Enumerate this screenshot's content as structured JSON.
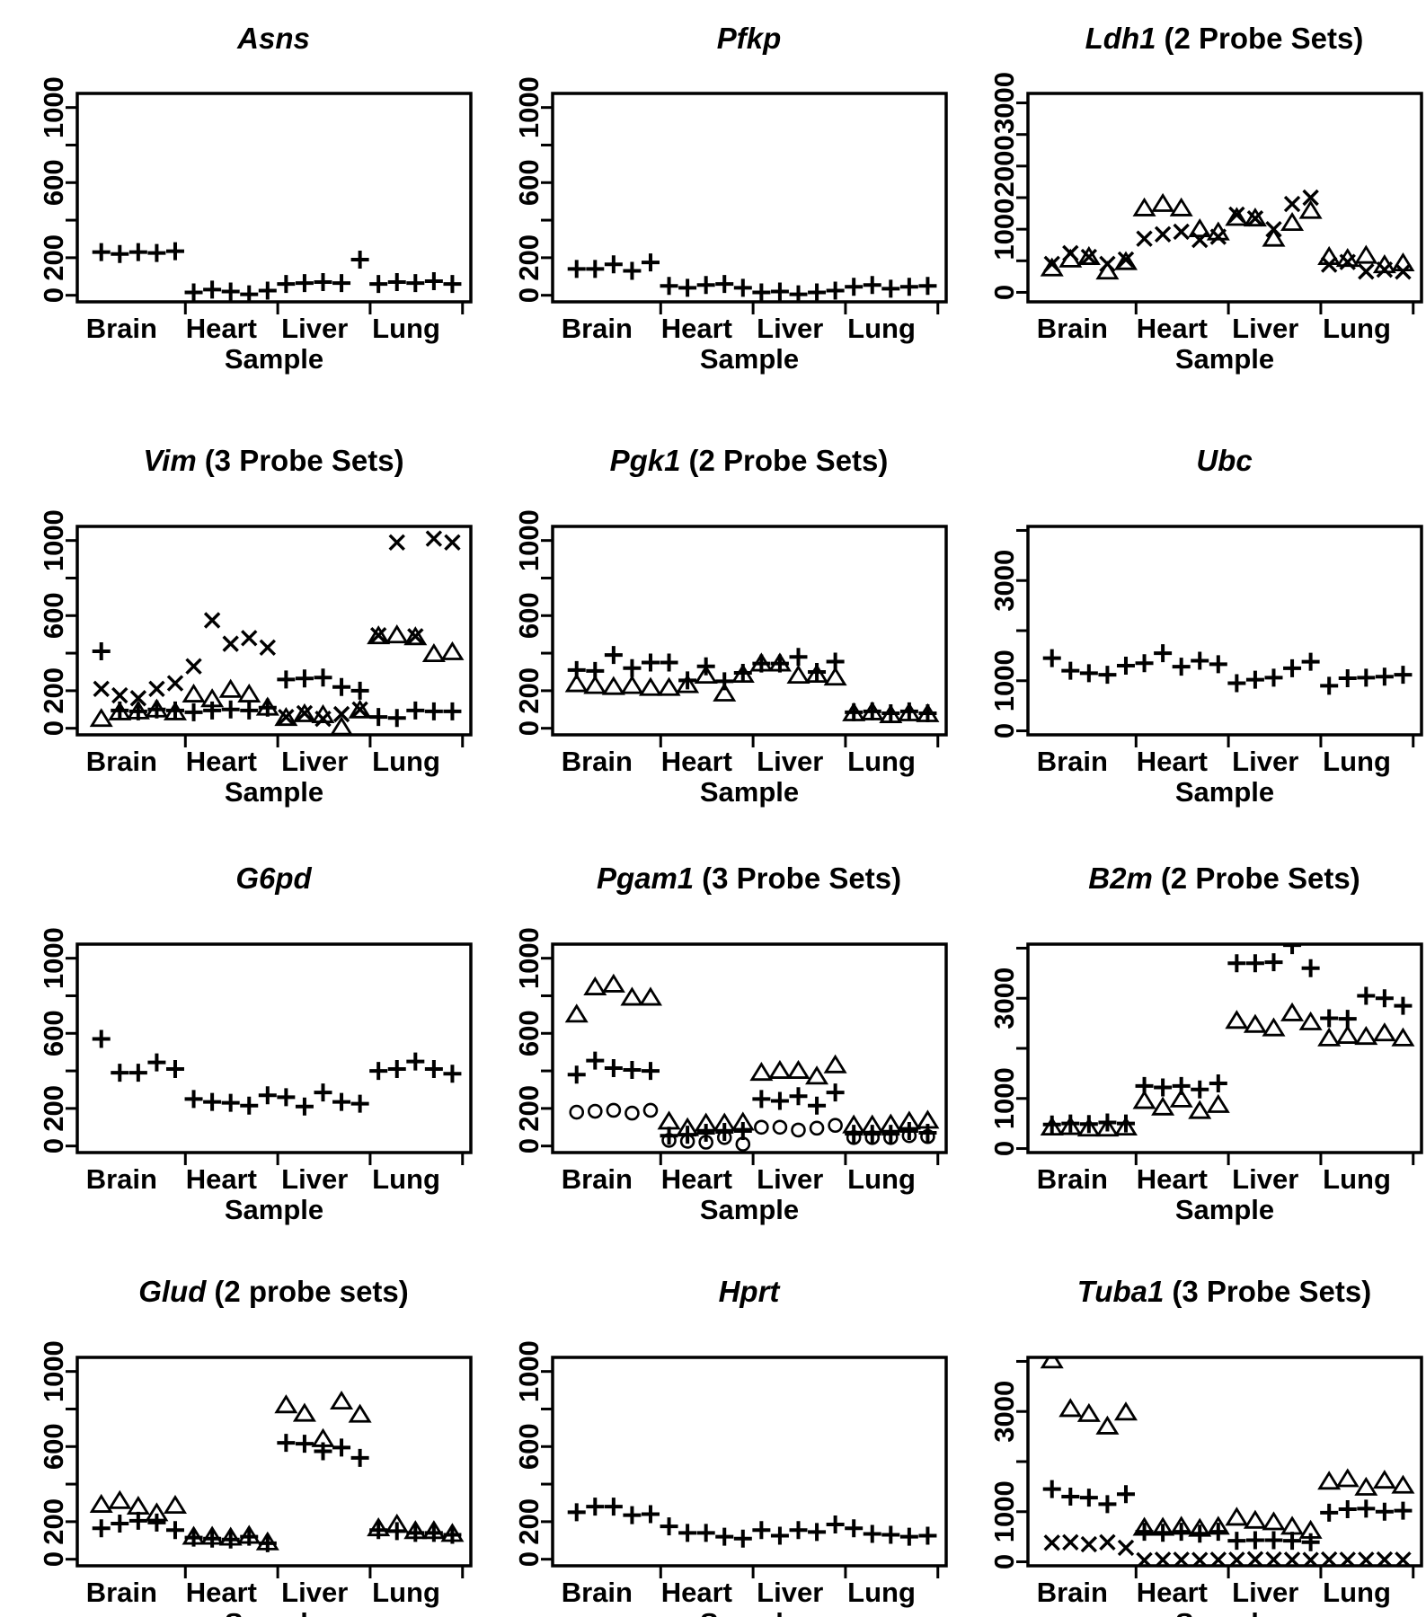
{
  "page": {
    "background": "#ffffff",
    "marker_color": "#000000"
  },
  "chart_data": {
    "type": "scatter",
    "layout": "3x4-grid",
    "xlabel": "Sample",
    "categories": [
      "Brain",
      "Heart",
      "Liver",
      "Lung"
    ],
    "samples_per_tissue": 5,
    "grid": "off",
    "axes": {
      "y1000": {
        "ylim": [
          -35,
          1075
        ],
        "ticks": [
          0,
          200,
          400,
          600,
          800,
          1000
        ],
        "tick_labels": [
          "0",
          "200",
          "",
          "600",
          "",
          "1000"
        ]
      },
      "y3000": {
        "ylim": [
          -150,
          3150
        ],
        "ticks": [
          0,
          500,
          1000,
          1500,
          2000,
          2500,
          3000
        ],
        "tick_labels": [
          "0",
          "",
          "1000",
          "",
          "2000",
          "",
          "3000"
        ]
      },
      "y4000": {
        "ylim": [
          -80,
          4080
        ],
        "ticks": [
          0,
          1000,
          2000,
          3000,
          4000
        ],
        "tick_labels": [
          "0",
          "1000",
          "",
          "3000",
          ""
        ]
      }
    },
    "charts": [
      {
        "gene": "Asns",
        "suffix": "",
        "axis": "y1000",
        "series": [
          {
            "name": "probe-set-1",
            "marker": "plus",
            "values": [
              230,
              220,
              230,
              225,
              235,
              15,
              30,
              20,
              5,
              25,
              60,
              65,
              70,
              65,
              190,
              60,
              70,
              65,
              75,
              60
            ]
          }
        ]
      },
      {
        "gene": "Pfkp",
        "suffix": "",
        "axis": "y1000",
        "series": [
          {
            "name": "probe-set-1",
            "marker": "plus",
            "values": [
              140,
              140,
              165,
              130,
              175,
              50,
              40,
              55,
              60,
              40,
              15,
              20,
              5,
              15,
              25,
              45,
              55,
              35,
              45,
              50
            ]
          }
        ]
      },
      {
        "gene": "Ldh1",
        "suffix": "(2 Probe Sets)",
        "axis": "y3000",
        "series": [
          {
            "name": "probe-set-1",
            "marker": "x",
            "values": [
              450,
              620,
              560,
              450,
              520,
              850,
              920,
              960,
              830,
              880,
              1230,
              1170,
              1000,
              1400,
              1500,
              440,
              480,
              330,
              360,
              330
            ]
          },
          {
            "name": "probe-set-2",
            "marker": "triangle",
            "values": [
              380,
              520,
              560,
              330,
              480,
              1330,
              1400,
              1330,
              1000,
              950,
              1180,
              1170,
              850,
              1100,
              1290,
              560,
              530,
              580,
              430,
              460
            ]
          }
        ]
      },
      {
        "gene": "Vim",
        "suffix": "(3 Probe Sets)",
        "axis": "y1000",
        "series": [
          {
            "name": "probe-set-1",
            "marker": "x",
            "values": [
              210,
              175,
              160,
              210,
              240,
              330,
              575,
              450,
              480,
              430,
              60,
              80,
              50,
              75,
              100,
              495,
              990,
              490,
              1010,
              990
            ]
          },
          {
            "name": "probe-set-2",
            "marker": "triangle",
            "values": [
              50,
              85,
              90,
              100,
              85,
              180,
              155,
              205,
              180,
              110,
              55,
              75,
              70,
              5,
              95,
              490,
              495,
              485,
              395,
              405
            ]
          },
          {
            "name": "probe-set-3",
            "marker": "plus",
            "values": [
              410,
              95,
              90,
              100,
              95,
              85,
              95,
              100,
              95,
              110,
              260,
              265,
              270,
              220,
              200,
              60,
              55,
              95,
              90,
              90
            ]
          }
        ]
      },
      {
        "gene": "Pgk1",
        "suffix": "(2 Probe Sets)",
        "axis": "y1000",
        "series": [
          {
            "name": "probe-set-1",
            "marker": "triangle",
            "values": [
              235,
              225,
              220,
              225,
              215,
              215,
              230,
              280,
              185,
              285,
              345,
              345,
              280,
              285,
              270,
              80,
              85,
              70,
              80,
              75
            ]
          },
          {
            "name": "probe-set-2",
            "marker": "plus",
            "values": [
              310,
              305,
              390,
              320,
              350,
              350,
              255,
              330,
              250,
              295,
              345,
              345,
              380,
              300,
              355,
              85,
              90,
              80,
              90,
              80
            ]
          }
        ]
      },
      {
        "gene": "Ubc",
        "suffix": "",
        "axis": "y4000",
        "series": [
          {
            "name": "probe-set-1",
            "marker": "plus",
            "values": [
              1450,
              1200,
              1150,
              1120,
              1300,
              1350,
              1550,
              1280,
              1400,
              1330,
              950,
              1020,
              1060,
              1250,
              1380,
              900,
              1050,
              1060,
              1080,
              1120
            ]
          }
        ]
      },
      {
        "gene": "G6pd",
        "suffix": "",
        "axis": "y1000",
        "series": [
          {
            "name": "probe-set-1",
            "marker": "plus",
            "values": [
              570,
              390,
              390,
              445,
              410,
              250,
              235,
              230,
              215,
              270,
              260,
              210,
              285,
              235,
              225,
              400,
              410,
              450,
              410,
              385
            ]
          }
        ]
      },
      {
        "gene": "Pgam1",
        "suffix": "(3 Probe Sets)",
        "axis": "y1000",
        "series": [
          {
            "name": "probe-set-1",
            "marker": "triangle",
            "values": [
              700,
              845,
              860,
              790,
              790,
              130,
              95,
              120,
              120,
              125,
              390,
              400,
              400,
              370,
              430,
              110,
              110,
              115,
              130,
              135
            ]
          },
          {
            "name": "probe-set-2",
            "marker": "plus",
            "values": [
              380,
              455,
              415,
              405,
              400,
              55,
              60,
              70,
              75,
              80,
              250,
              240,
              265,
              215,
              285,
              65,
              65,
              65,
              80,
              70
            ]
          },
          {
            "name": "probe-set-3",
            "marker": "circle",
            "values": [
              180,
              185,
              190,
              175,
              190,
              30,
              25,
              20,
              45,
              10,
              100,
              100,
              85,
              95,
              110,
              45,
              45,
              45,
              55,
              50
            ]
          }
        ]
      },
      {
        "gene": "B2m",
        "suffix": "(2 Probe Sets)",
        "axis": "y4000",
        "series": [
          {
            "name": "probe-set-1",
            "marker": "triangle",
            "values": [
              420,
              430,
              400,
              400,
              420,
              950,
              820,
              980,
              750,
              870,
              2550,
              2470,
              2400,
              2700,
              2520,
              2200,
              2250,
              2230,
              2300,
              2200
            ]
          },
          {
            "name": "probe-set-2",
            "marker": "plus",
            "values": [
              480,
              500,
              490,
              520,
              500,
              1250,
              1220,
              1250,
              1180,
              1300,
              3700,
              3700,
              3720,
              4060,
              3600,
              2600,
              2590,
              3050,
              3000,
              2850
            ]
          }
        ]
      },
      {
        "gene": "Glud",
        "suffix": "(2 probe sets)",
        "axis": "y1000",
        "series": [
          {
            "name": "probe-set-1",
            "marker": "triangle",
            "values": [
              290,
              310,
              280,
              245,
              285,
              120,
              120,
              115,
              125,
              90,
              820,
              775,
              640,
              840,
              770,
              165,
              185,
              150,
              150,
              135
            ]
          },
          {
            "name": "probe-set-2",
            "marker": "plus",
            "values": [
              165,
              190,
              205,
              195,
              155,
              115,
              110,
              105,
              120,
              85,
              620,
              615,
              575,
              595,
              540,
              155,
              150,
              140,
              140,
              130
            ]
          }
        ]
      },
      {
        "gene": "Hprt",
        "suffix": "",
        "axis": "y1000",
        "series": [
          {
            "name": "probe-set-1",
            "marker": "plus",
            "values": [
              250,
              280,
              280,
              235,
              240,
              175,
              140,
              140,
              120,
              110,
              155,
              125,
              155,
              145,
              185,
              165,
              135,
              130,
              120,
              125
            ]
          }
        ]
      },
      {
        "gene": "Tuba1",
        "suffix": "(3 Probe Sets)",
        "axis": "y4000",
        "series": [
          {
            "name": "probe-set-1",
            "marker": "triangle",
            "values": [
              4020,
              3050,
              2950,
              2700,
              2980,
              680,
              680,
              700,
              660,
              700,
              880,
              820,
              790,
              700,
              620,
              1600,
              1650,
              1480,
              1620,
              1520
            ]
          },
          {
            "name": "probe-set-2",
            "marker": "plus",
            "values": [
              1450,
              1300,
              1280,
              1150,
              1350,
              600,
              580,
              600,
              560,
              600,
              420,
              430,
              430,
              420,
              390,
              980,
              1050,
              1060,
              1000,
              1020
            ]
          },
          {
            "name": "probe-set-3",
            "marker": "x",
            "values": [
              380,
              390,
              350,
              390,
              280,
              30,
              40,
              40,
              35,
              40,
              40,
              50,
              45,
              40,
              35,
              45,
              40,
              40,
              45,
              40
            ]
          }
        ]
      }
    ]
  }
}
